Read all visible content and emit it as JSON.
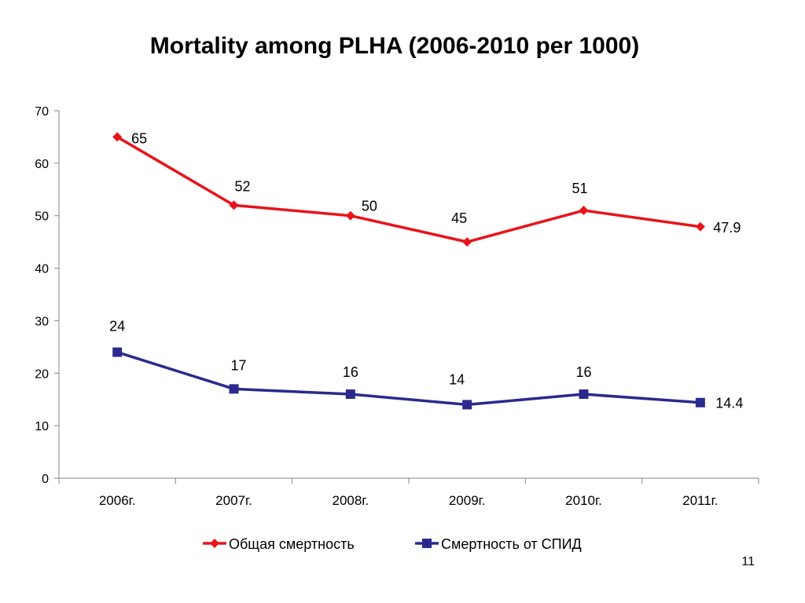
{
  "slide": {
    "title": "Mortality among PLHA (2006-2010 per 1000)",
    "page_number": "11"
  },
  "chart_data": {
    "type": "line",
    "title": "Mortality among PLHA (2006-2010 per 1000)",
    "xlabel": "",
    "ylabel": "",
    "categories": [
      "2006г.",
      "2007г.",
      "2008г.",
      "2009г.",
      "2010г.",
      "2011г."
    ],
    "ylim": [
      0,
      70
    ],
    "yticks": [
      0,
      10,
      20,
      30,
      40,
      50,
      60,
      70
    ],
    "grid": false,
    "legend_position": "bottom",
    "series": [
      {
        "name": "Общая смертность",
        "values": [
          65,
          52,
          50,
          45,
          51,
          47.9
        ],
        "labels": [
          "65",
          "52",
          "50",
          "45",
          "51",
          "47.9"
        ],
        "color": "#E8141B",
        "marker": "diamond"
      },
      {
        "name": "Смертность от СПИД",
        "values": [
          24,
          17,
          16,
          14,
          16,
          14.4
        ],
        "labels": [
          "24",
          "17",
          "16",
          "14",
          "16",
          "14.4"
        ],
        "color": "#2B2A8C",
        "marker": "square"
      }
    ]
  }
}
